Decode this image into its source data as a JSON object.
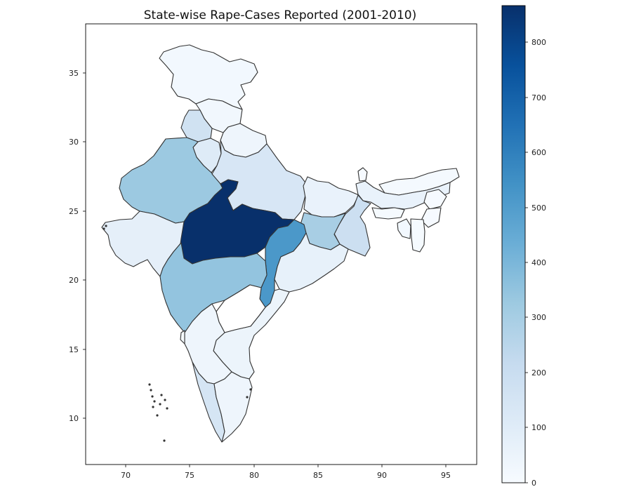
{
  "chart_data": {
    "type": "choropleth",
    "title": "State-wise Rape-Cases Reported (2001-2010)",
    "xlim": [
      67,
      97.5
    ],
    "ylim": [
      6.5,
      38.5
    ],
    "x_ticks": [
      "70",
      "75",
      "80",
      "85",
      "90",
      "95"
    ],
    "y_ticks": [
      "10",
      "15",
      "20",
      "25",
      "30",
      "35"
    ],
    "colormap": "Blues",
    "colorbar": {
      "min": 0,
      "max": 870,
      "ticks": [
        "0",
        "100",
        "200",
        "300",
        "400",
        "500",
        "600",
        "700",
        "800"
      ]
    },
    "regions": [
      {
        "name": "Jammu & Kashmir",
        "value": 20,
        "lon": 75.5,
        "lat": 34.5
      },
      {
        "name": "Himachal Pradesh",
        "value": 25,
        "lon": 77.2,
        "lat": 31.8
      },
      {
        "name": "Punjab",
        "value": 170,
        "lon": 75.5,
        "lat": 30.8
      },
      {
        "name": "Haryana",
        "value": 110,
        "lon": 76.2,
        "lat": 29.2
      },
      {
        "name": "Uttarakhand",
        "value": 40,
        "lon": 79.0,
        "lat": 30.0
      },
      {
        "name": "Rajasthan",
        "value": 330,
        "lon": 73.8,
        "lat": 26.6
      },
      {
        "name": "Uttar Pradesh",
        "value": 140,
        "lon": 80.8,
        "lat": 27.0
      },
      {
        "name": "Bihar",
        "value": 60,
        "lon": 85.6,
        "lat": 25.8
      },
      {
        "name": "Sikkim",
        "value": 5,
        "lon": 88.5,
        "lat": 27.5
      },
      {
        "name": "Arunachal Pradesh",
        "value": 15,
        "lon": 94.5,
        "lat": 28.0
      },
      {
        "name": "Assam",
        "value": 60,
        "lon": 92.5,
        "lat": 26.3
      },
      {
        "name": "Meghalaya",
        "value": 10,
        "lon": 91.3,
        "lat": 25.5
      },
      {
        "name": "Nagaland",
        "value": 5,
        "lon": 94.3,
        "lat": 26.0
      },
      {
        "name": "Manipur",
        "value": 5,
        "lon": 93.8,
        "lat": 24.7
      },
      {
        "name": "Tripura",
        "value": 20,
        "lon": 91.7,
        "lat": 23.8
      },
      {
        "name": "Mizoram",
        "value": 10,
        "lon": 92.8,
        "lat": 23.3
      },
      {
        "name": "West Bengal",
        "value": 190,
        "lon": 87.8,
        "lat": 23.2
      },
      {
        "name": "Jharkhand",
        "value": 300,
        "lon": 85.3,
        "lat": 23.5
      },
      {
        "name": "Gujarat",
        "value": 80,
        "lon": 71.5,
        "lat": 22.6
      },
      {
        "name": "Madhya Pradesh",
        "value": 870,
        "lon": 78.0,
        "lat": 23.5
      },
      {
        "name": "Chhattisgarh",
        "value": 520,
        "lon": 82.0,
        "lat": 21.5
      },
      {
        "name": "Odisha",
        "value": 70,
        "lon": 84.5,
        "lat": 20.5
      },
      {
        "name": "Maharashtra",
        "value": 350,
        "lon": 76.0,
        "lat": 19.5
      },
      {
        "name": "Telangana",
        "value": 0,
        "lon": 79.0,
        "lat": 18.0
      },
      {
        "name": "Andhra Pradesh",
        "value": 50,
        "lon": 79.5,
        "lat": 15.5
      },
      {
        "name": "Karnataka",
        "value": 40,
        "lon": 76.0,
        "lat": 14.5
      },
      {
        "name": "Goa",
        "value": 10,
        "lon": 74.0,
        "lat": 15.4
      },
      {
        "name": "Kerala",
        "value": 150,
        "lon": 76.3,
        "lat": 10.2
      },
      {
        "name": "Tamil Nadu",
        "value": 40,
        "lon": 78.6,
        "lat": 11.0
      }
    ]
  }
}
